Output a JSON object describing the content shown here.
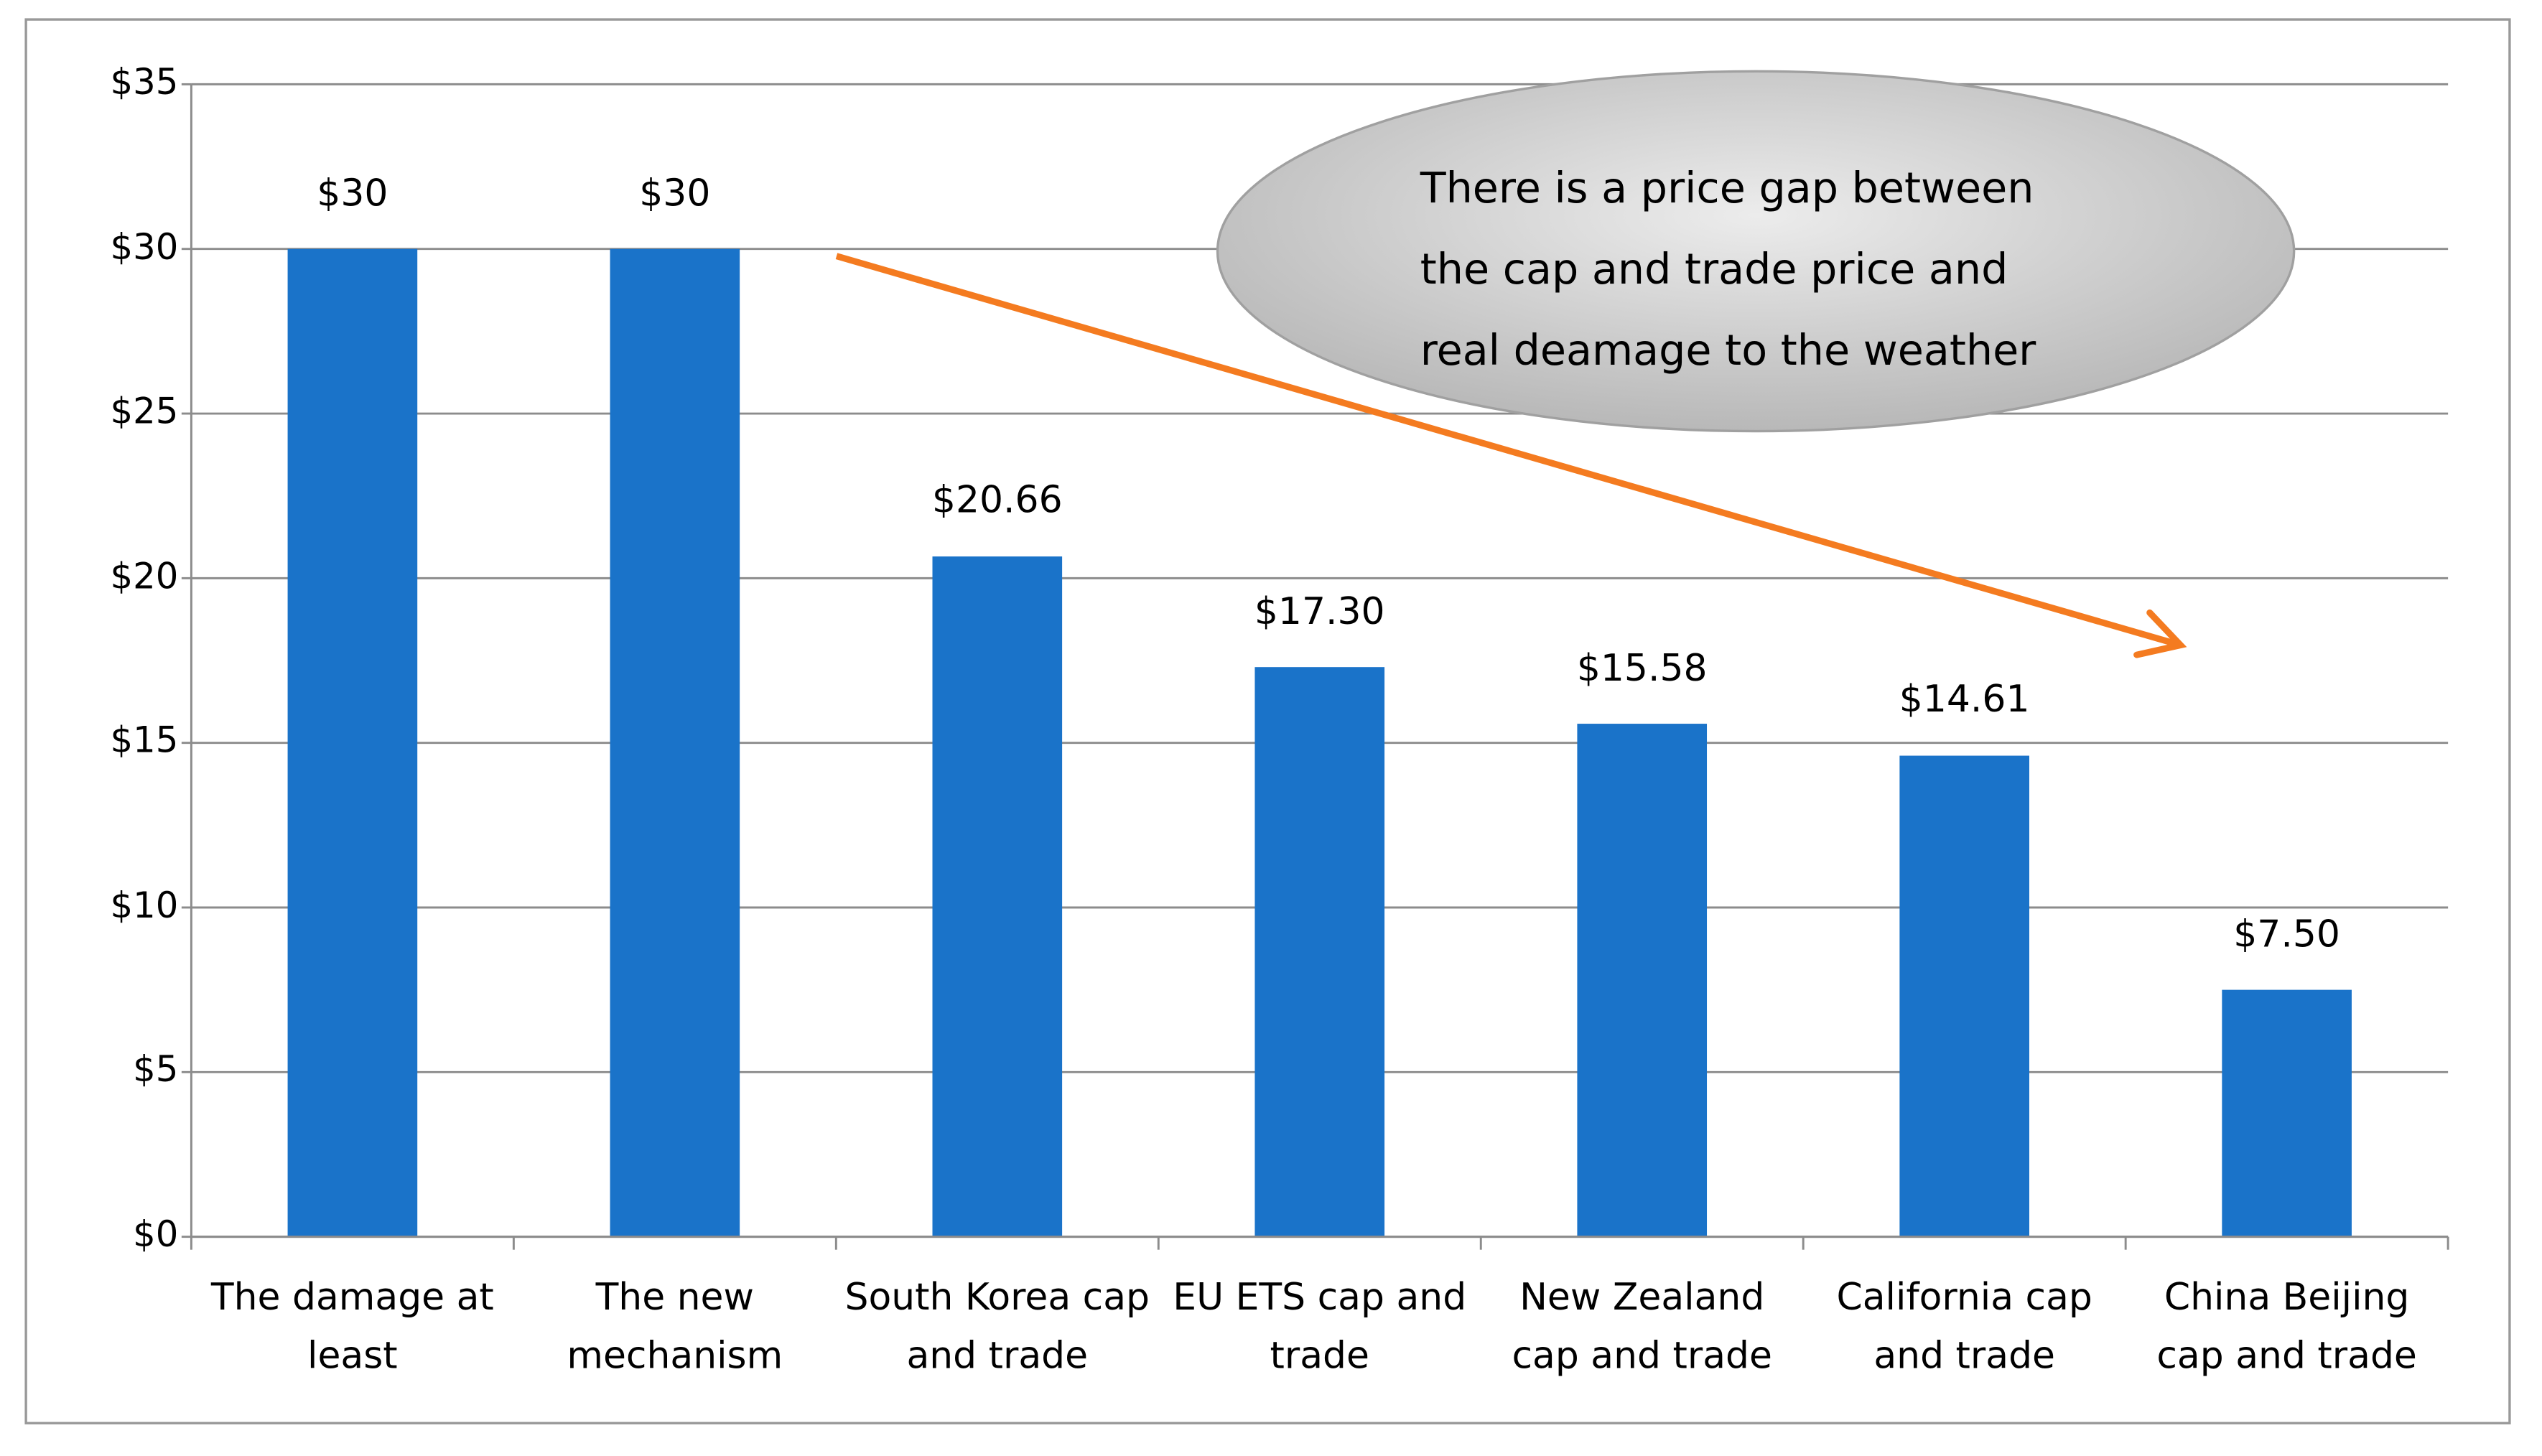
{
  "chart_data": {
    "type": "bar",
    "categories": [
      "The damage at least",
      "The new mechanism",
      "South Korea cap and trade",
      "EU ETS cap and trade",
      "New Zealand cap and trade",
      "California cap and trade",
      "China Beijing cap and trade"
    ],
    "values": [
      30,
      30,
      20.66,
      17.3,
      15.58,
      14.61,
      7.5
    ],
    "value_labels": [
      "$30",
      "$30",
      "$20.66",
      "$17.30",
      "$15.58",
      "$14.61",
      "$7.50"
    ],
    "color": "#1a73c9",
    "ylim": [
      0,
      35
    ],
    "yticks": [
      {
        "value": 0,
        "label": "$0"
      },
      {
        "value": 5,
        "label": "$5"
      },
      {
        "value": 10,
        "label": "$10"
      },
      {
        "value": 15,
        "label": "$15"
      },
      {
        "value": 20,
        "label": "$20"
      },
      {
        "value": 25,
        "label": "$25"
      },
      {
        "value": 30,
        "label": "$30"
      },
      {
        "value": 35,
        "label": "$35"
      }
    ],
    "grid": true,
    "annotation": "There is a price gap between the cap and trade price and real deamage to the weather"
  }
}
